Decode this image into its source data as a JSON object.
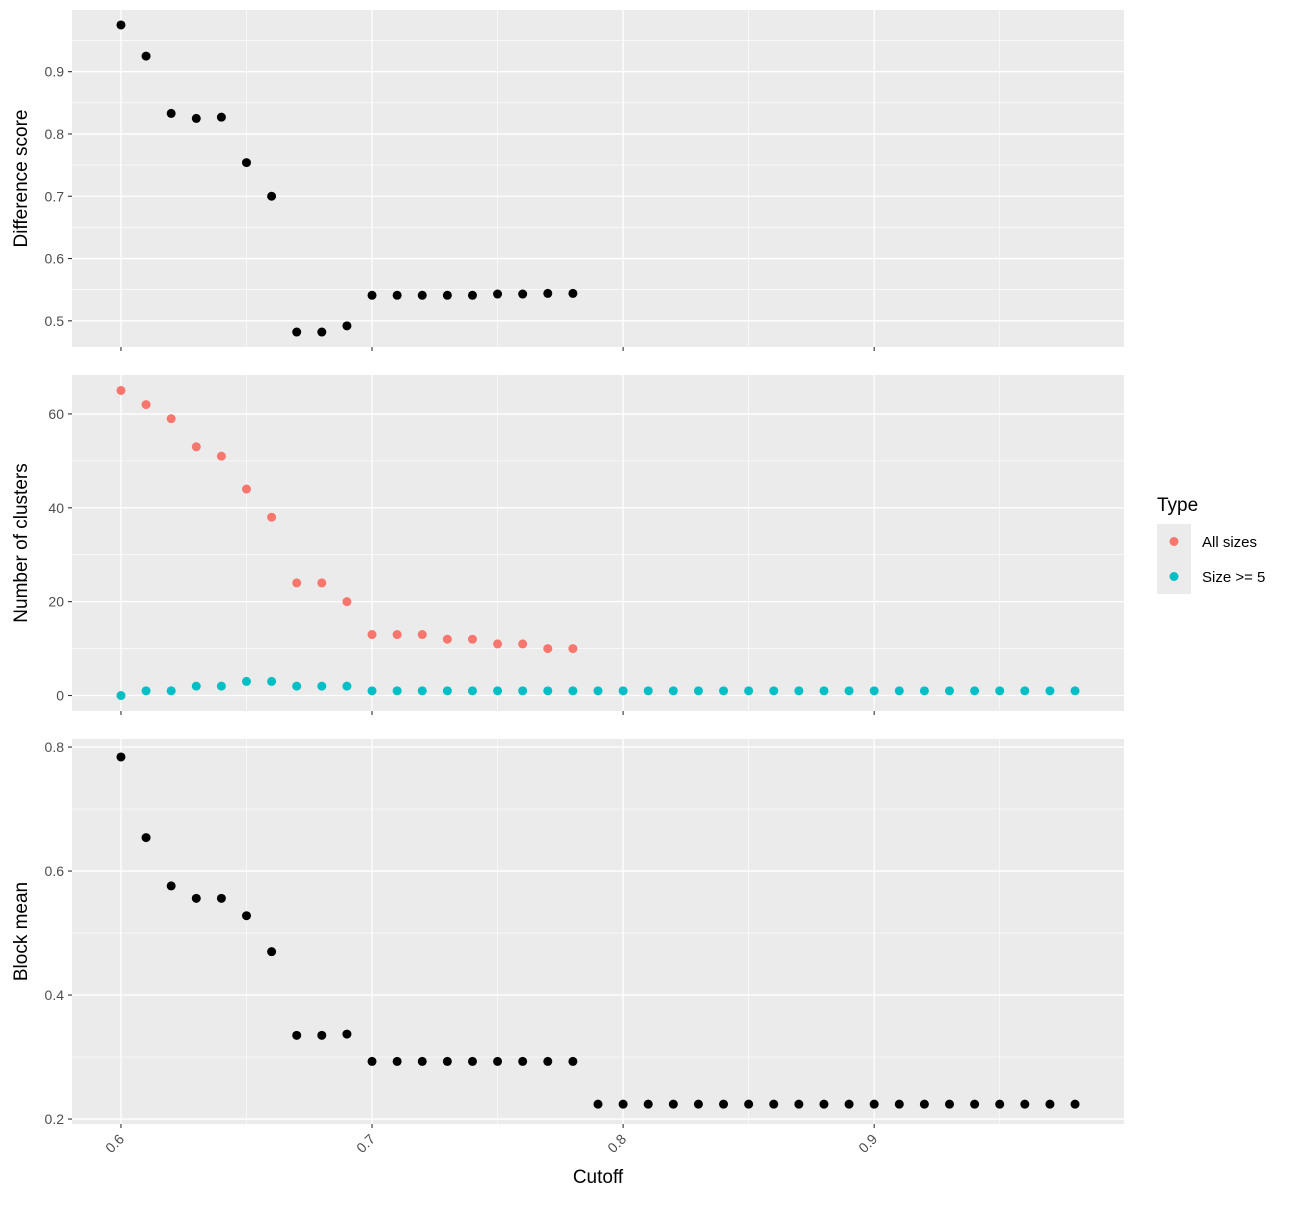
{
  "chart_data": {
    "type": "scatter",
    "xlabel": "Cutoff",
    "x_ticks": [
      0.6,
      0.7,
      0.8,
      0.9
    ],
    "x_tick_labels": [
      "0.6",
      "0.7",
      "0.8",
      "0.9"
    ],
    "xlim": [
      0.5805,
      0.9995
    ],
    "grid": true,
    "legend_position": "right",
    "legend": {
      "title": "Type",
      "entries": [
        {
          "label": "All sizes",
          "color": "#F8766D"
        },
        {
          "label": "Size >= 5",
          "color": "#00BFC4"
        }
      ]
    },
    "panels": [
      {
        "ylabel": "Difference score",
        "ylim": [
          0.458,
          0.999
        ],
        "y_ticks": [
          0.5,
          0.6,
          0.7,
          0.8,
          0.9
        ],
        "y_tick_labels": [
          "0.5",
          "0.6",
          "0.7",
          "0.8",
          "0.9"
        ],
        "series": [
          {
            "color": "#000000",
            "x": [
              0.6,
              0.61,
              0.62,
              0.63,
              0.64,
              0.65,
              0.66,
              0.67,
              0.68,
              0.69,
              0.7,
              0.71,
              0.72,
              0.73,
              0.74,
              0.75,
              0.76,
              0.77,
              0.78
            ],
            "y": [
              0.975,
              0.925,
              0.833,
              0.825,
              0.827,
              0.754,
              0.7,
              0.482,
              0.482,
              0.492,
              0.541,
              0.541,
              0.541,
              0.541,
              0.541,
              0.543,
              0.543,
              0.544,
              0.544
            ]
          }
        ]
      },
      {
        "ylabel": "Number of clusters",
        "ylim": [
          -3.3,
          68.3
        ],
        "y_ticks": [
          0,
          20,
          40,
          60
        ],
        "y_tick_labels": [
          "0",
          "20",
          "40",
          "60"
        ],
        "series": [
          {
            "name": "All sizes",
            "color": "#F8766D",
            "x": [
              0.6,
              0.61,
              0.62,
              0.63,
              0.64,
              0.65,
              0.66,
              0.67,
              0.68,
              0.69,
              0.7,
              0.71,
              0.72,
              0.73,
              0.74,
              0.75,
              0.76,
              0.77,
              0.78
            ],
            "y": [
              65,
              62,
              59,
              53,
              51,
              44,
              38,
              24,
              24,
              20,
              13,
              13,
              13,
              12,
              12,
              11,
              11,
              10,
              10
            ]
          },
          {
            "name": "Size >= 5",
            "color": "#00BFC4",
            "x": [
              0.6,
              0.61,
              0.62,
              0.63,
              0.64,
              0.65,
              0.66,
              0.67,
              0.68,
              0.69,
              0.7,
              0.71,
              0.72,
              0.73,
              0.74,
              0.75,
              0.76,
              0.77,
              0.78,
              0.79,
              0.8,
              0.81,
              0.82,
              0.83,
              0.84,
              0.85,
              0.86,
              0.87,
              0.88,
              0.89,
              0.9,
              0.91,
              0.92,
              0.93,
              0.94,
              0.95,
              0.96,
              0.97,
              0.98
            ],
            "y": [
              0,
              1,
              1,
              2,
              2,
              3,
              3,
              2,
              2,
              2,
              1,
              1,
              1,
              1,
              1,
              1,
              1,
              1,
              1,
              1,
              1,
              1,
              1,
              1,
              1,
              1,
              1,
              1,
              1,
              1,
              1,
              1,
              1,
              1,
              1,
              1,
              1,
              1,
              1
            ]
          }
        ]
      },
      {
        "ylabel": "Block mean",
        "ylim": [
          0.192,
          0.813
        ],
        "y_ticks": [
          0.2,
          0.4,
          0.6,
          0.8
        ],
        "y_tick_labels": [
          "0.2",
          "0.4",
          "0.6",
          "0.8"
        ],
        "series": [
          {
            "color": "#000000",
            "x": [
              0.6,
              0.61,
              0.62,
              0.63,
              0.64,
              0.65,
              0.66,
              0.67,
              0.68,
              0.69,
              0.7,
              0.71,
              0.72,
              0.73,
              0.74,
              0.75,
              0.76,
              0.77,
              0.78,
              0.79,
              0.8,
              0.81,
              0.82,
              0.83,
              0.84,
              0.85,
              0.86,
              0.87,
              0.88,
              0.89,
              0.9,
              0.91,
              0.92,
              0.93,
              0.94,
              0.95,
              0.96,
              0.97,
              0.98
            ],
            "y": [
              0.784,
              0.654,
              0.576,
              0.556,
              0.556,
              0.528,
              0.47,
              0.335,
              0.335,
              0.337,
              0.293,
              0.293,
              0.293,
              0.293,
              0.293,
              0.293,
              0.293,
              0.293,
              0.293,
              0.224,
              0.224,
              0.224,
              0.224,
              0.224,
              0.224,
              0.224,
              0.224,
              0.224,
              0.224,
              0.224,
              0.224,
              0.224,
              0.224,
              0.224,
              0.224,
              0.224,
              0.224,
              0.224,
              0.224
            ]
          }
        ]
      }
    ]
  }
}
